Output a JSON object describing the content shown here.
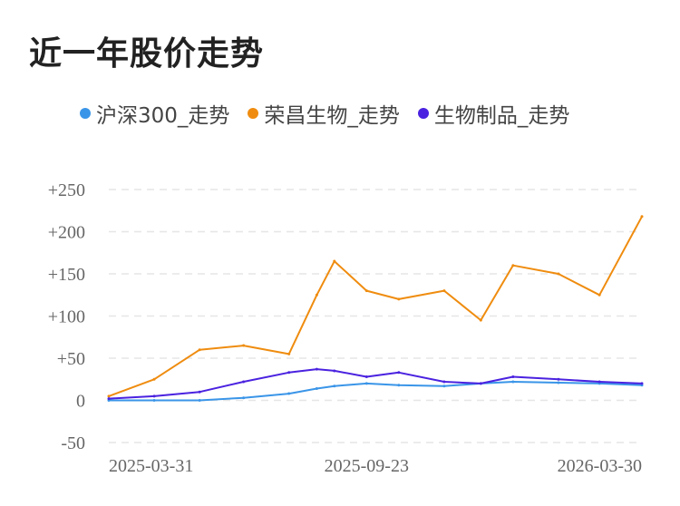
{
  "title": "近一年股价走势",
  "colors": {
    "hs300": "#3a95e8",
    "company": "#ef8c0f",
    "sector": "#4a22e0"
  },
  "legend": [
    {
      "label": "沪深300_走势",
      "color": "#3a95e8"
    },
    {
      "label": "荣昌生物_走势",
      "color": "#ef8c0f"
    },
    {
      "label": "生物制品_走势",
      "color": "#4a22e0"
    }
  ],
  "chart_data": {
    "type": "line",
    "title": "近一年股价走势",
    "x_ticks": [
      "2025-03-31",
      "2025-09-23",
      "2026-03-30"
    ],
    "x": [
      "2025-03-31",
      "2025-05-01",
      "2025-06-01",
      "2025-07-01",
      "2025-08-01",
      "2025-08-20",
      "2025-09-01",
      "2025-09-23",
      "2025-10-15",
      "2025-11-15",
      "2025-12-10",
      "2026-01-01",
      "2026-02-01",
      "2026-03-01",
      "2026-03-30"
    ],
    "y_ticks": [
      "+250",
      "+200",
      "+150",
      "+100",
      "+50",
      "0",
      "-50"
    ],
    "y_tick_values": [
      250,
      200,
      150,
      100,
      50,
      0,
      -50
    ],
    "ylim": [
      -50,
      250
    ],
    "grid": true,
    "legend_position": "top",
    "series": [
      {
        "name": "沪深300_走势",
        "color": "#3a95e8",
        "values": [
          0,
          0,
          0,
          3,
          8,
          14,
          17,
          20,
          18,
          17,
          20,
          22,
          21,
          20,
          18
        ]
      },
      {
        "name": "荣昌生物_走势",
        "color": "#ef8c0f",
        "values": [
          5,
          25,
          60,
          65,
          55,
          125,
          165,
          130,
          120,
          130,
          95,
          160,
          150,
          125,
          218
        ]
      },
      {
        "name": "生物制品_走势",
        "color": "#4a22e0",
        "values": [
          2,
          5,
          10,
          22,
          33,
          37,
          35,
          28,
          33,
          22,
          20,
          28,
          25,
          22,
          20
        ]
      }
    ]
  }
}
